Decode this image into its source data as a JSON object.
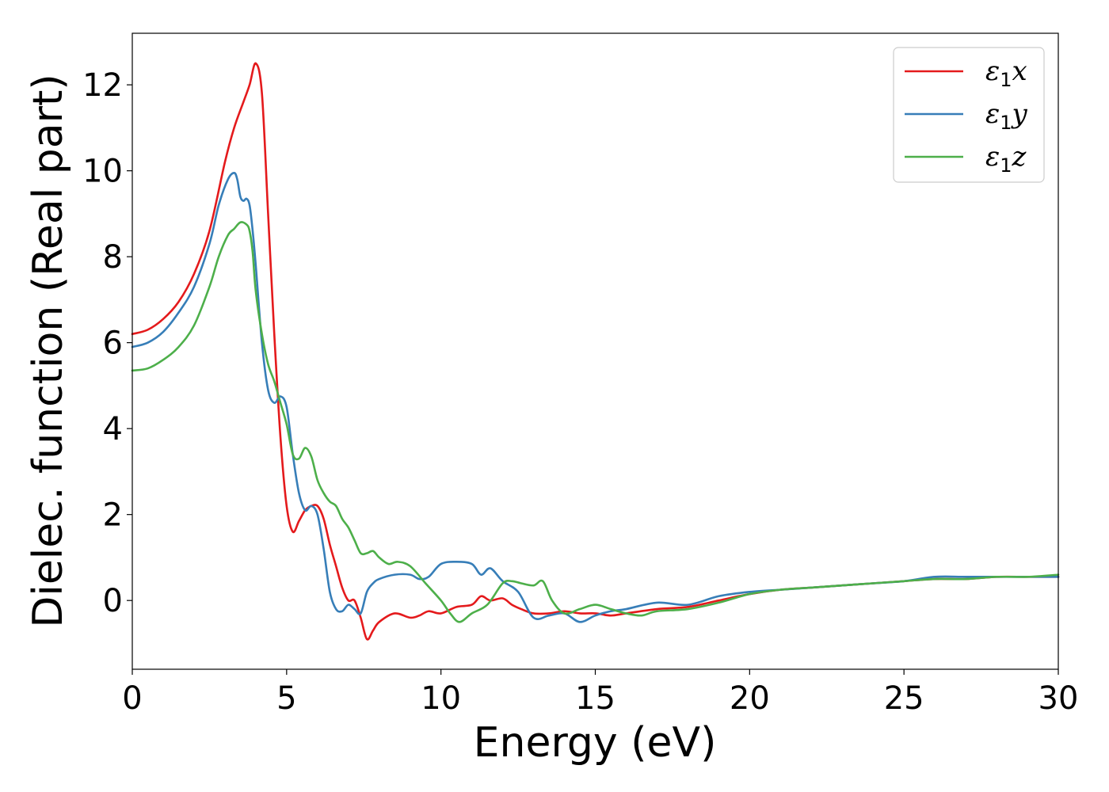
{
  "chart_data": {
    "type": "line",
    "xlabel": "Energy (eV)",
    "ylabel": "Dielec. function (Real part)",
    "xlim": [
      0,
      30
    ],
    "ylim": [
      -1.6,
      13.2
    ],
    "xticks": [
      0,
      5,
      10,
      15,
      20,
      25,
      30
    ],
    "yticks": [
      0,
      2,
      4,
      6,
      8,
      10,
      12
    ],
    "grid": false,
    "legend_position": "top-right",
    "series": [
      {
        "name": "ε1x",
        "symbol": "ε",
        "subscript": "1",
        "component": "x",
        "color": "#e41a1c",
        "x": [
          0,
          0.5,
          1.0,
          1.5,
          2.0,
          2.5,
          3.0,
          3.3,
          3.6,
          3.8,
          4.0,
          4.2,
          4.4,
          4.6,
          4.8,
          5.0,
          5.2,
          5.4,
          5.6,
          5.8,
          6.0,
          6.2,
          6.4,
          6.6,
          6.8,
          7.0,
          7.2,
          7.4,
          7.6,
          7.8,
          8.0,
          8.5,
          9.0,
          9.3,
          9.6,
          10.0,
          10.5,
          11.0,
          11.3,
          11.6,
          12.0,
          12.3,
          12.6,
          13.0,
          13.5,
          14.0,
          14.5,
          15.0,
          15.5,
          16.0,
          17.0,
          18.0,
          19.0,
          20.0,
          21.0,
          22.0,
          23.0,
          24.0,
          25.0,
          26.0,
          27.0,
          28.0,
          29.0,
          30.0
        ],
        "y": [
          6.2,
          6.3,
          6.55,
          6.95,
          7.6,
          8.6,
          10.2,
          11.0,
          11.6,
          12.0,
          12.5,
          11.8,
          9.0,
          6.2,
          3.8,
          2.2,
          1.6,
          1.85,
          2.1,
          2.2,
          2.2,
          1.9,
          1.3,
          0.8,
          0.3,
          0.0,
          0.0,
          -0.4,
          -0.9,
          -0.7,
          -0.5,
          -0.3,
          -0.4,
          -0.35,
          -0.25,
          -0.3,
          -0.15,
          -0.1,
          0.1,
          0.0,
          0.05,
          -0.1,
          -0.2,
          -0.3,
          -0.3,
          -0.25,
          -0.3,
          -0.3,
          -0.35,
          -0.3,
          -0.2,
          -0.15,
          0.0,
          0.15,
          0.25,
          0.3,
          0.35,
          0.4,
          0.45,
          0.5,
          0.5,
          0.55,
          0.55,
          0.55
        ]
      },
      {
        "name": "ε1y",
        "symbol": "ε",
        "subscript": "1",
        "component": "y",
        "color": "#377eb8",
        "x": [
          0,
          0.5,
          1.0,
          1.5,
          2.0,
          2.5,
          2.8,
          3.1,
          3.3,
          3.4,
          3.5,
          3.6,
          3.7,
          3.8,
          3.9,
          4.0,
          4.2,
          4.4,
          4.6,
          4.8,
          5.0,
          5.2,
          5.4,
          5.6,
          5.8,
          6.0,
          6.2,
          6.4,
          6.6,
          6.8,
          7.0,
          7.2,
          7.4,
          7.6,
          7.8,
          8.0,
          8.5,
          9.0,
          9.3,
          9.6,
          10.0,
          10.5,
          11.0,
          11.3,
          11.6,
          12.0,
          12.5,
          13.0,
          13.5,
          14.0,
          14.5,
          15.0,
          15.5,
          16.0,
          17.0,
          18.0,
          19.0,
          20.0,
          21.0,
          22.0,
          23.0,
          24.0,
          25.0,
          26.0,
          27.0,
          28.0,
          29.0,
          30.0
        ],
        "y": [
          5.9,
          6.0,
          6.25,
          6.7,
          7.3,
          8.3,
          9.2,
          9.8,
          9.95,
          9.8,
          9.4,
          9.3,
          9.35,
          9.2,
          8.6,
          7.8,
          6.0,
          4.9,
          4.6,
          4.75,
          4.5,
          3.4,
          2.5,
          2.1,
          2.2,
          2.0,
          1.2,
          0.2,
          -0.2,
          -0.25,
          -0.1,
          -0.2,
          -0.3,
          0.2,
          0.4,
          0.5,
          0.6,
          0.6,
          0.5,
          0.55,
          0.85,
          0.9,
          0.85,
          0.6,
          0.75,
          0.45,
          0.2,
          -0.4,
          -0.35,
          -0.3,
          -0.5,
          -0.35,
          -0.25,
          -0.2,
          -0.05,
          -0.1,
          0.1,
          0.2,
          0.25,
          0.3,
          0.35,
          0.4,
          0.45,
          0.55,
          0.55,
          0.55,
          0.55,
          0.55
        ]
      },
      {
        "name": "ε1z",
        "symbol": "ε",
        "subscript": "1",
        "component": "z",
        "color": "#4daf4a",
        "x": [
          0,
          0.5,
          1.0,
          1.5,
          2.0,
          2.5,
          2.8,
          3.1,
          3.3,
          3.5,
          3.7,
          3.8,
          3.9,
          4.0,
          4.2,
          4.4,
          4.6,
          4.8,
          5.0,
          5.2,
          5.4,
          5.6,
          5.8,
          6.0,
          6.2,
          6.4,
          6.6,
          6.8,
          7.0,
          7.2,
          7.4,
          7.6,
          7.8,
          8.0,
          8.3,
          8.6,
          9.0,
          9.5,
          10.0,
          10.3,
          10.6,
          11.0,
          11.5,
          12.0,
          12.3,
          12.6,
          13.0,
          13.3,
          13.6,
          14.0,
          14.5,
          15.0,
          15.5,
          16.0,
          16.5,
          17.0,
          18.0,
          19.0,
          20.0,
          21.0,
          22.0,
          23.0,
          24.0,
          25.0,
          26.0,
          27.0,
          28.0,
          29.0,
          30.0
        ],
        "y": [
          5.35,
          5.4,
          5.6,
          5.9,
          6.4,
          7.3,
          8.0,
          8.5,
          8.65,
          8.8,
          8.75,
          8.6,
          8.1,
          7.2,
          6.2,
          5.5,
          5.1,
          4.6,
          4.1,
          3.4,
          3.3,
          3.55,
          3.35,
          2.8,
          2.5,
          2.3,
          2.2,
          1.9,
          1.7,
          1.4,
          1.1,
          1.1,
          1.15,
          1.0,
          0.85,
          0.9,
          0.8,
          0.4,
          0.0,
          -0.3,
          -0.5,
          -0.3,
          -0.1,
          0.4,
          0.45,
          0.4,
          0.35,
          0.45,
          0.0,
          -0.3,
          -0.2,
          -0.1,
          -0.2,
          -0.3,
          -0.35,
          -0.25,
          -0.2,
          -0.05,
          0.15,
          0.25,
          0.3,
          0.35,
          0.4,
          0.45,
          0.5,
          0.5,
          0.55,
          0.55,
          0.6
        ]
      }
    ]
  }
}
